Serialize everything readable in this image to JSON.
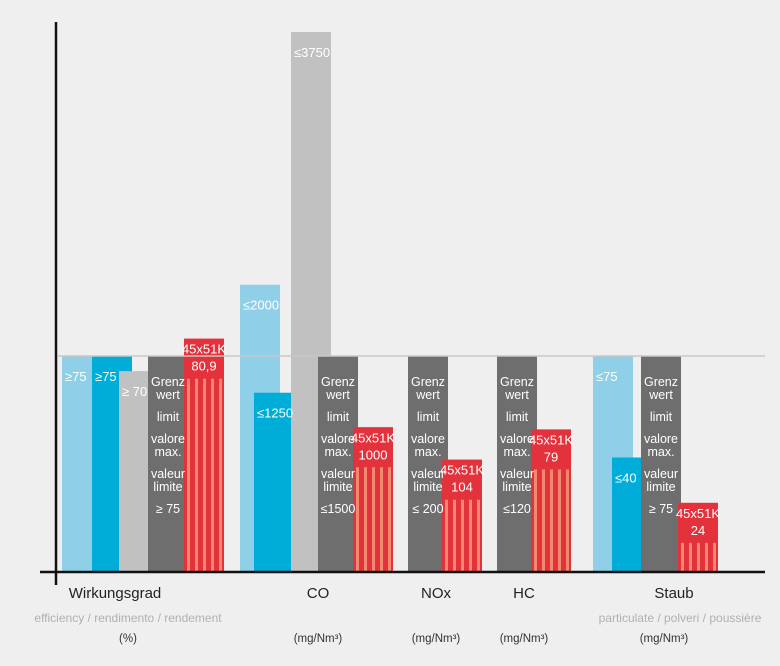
{
  "colors": {
    "background": "#efefef",
    "light_blue": "#8fcfe8",
    "blue": "#00acd8",
    "light_gray": "#c1c1c1",
    "dark_gray": "#6e6e6e",
    "red": "#e3323b",
    "red_stripe": "#f08a6e",
    "reference_line": "#c8c8c8",
    "axis": "#111111"
  },
  "chart_data": {
    "type": "bar",
    "reference_level": "100% of limit",
    "groups": [
      {
        "name": "Wirkungsgrad",
        "subtitle": "efficiency / rendimento / rendement",
        "unit": "(%)",
        "bars": [
          {
            "style": "light_blue",
            "label": "≥75",
            "value": 100
          },
          {
            "style": "blue",
            "label": "≥75",
            "value": 100
          },
          {
            "style": "light_gray",
            "label": "≥ 70",
            "value": 93
          },
          {
            "style": "dark_gray",
            "label_lines": [
              "Grenz",
              "wert",
              "",
              "limit",
              "",
              "valore",
              "max.",
              "",
              "valeur",
              "limite",
              "",
              "≥ 75"
            ],
            "value": 100
          },
          {
            "style": "red",
            "label_lines": [
              "45x51K",
              "80,9"
            ],
            "value": 108
          }
        ]
      },
      {
        "name": "CO",
        "subtitle": "",
        "unit": "(mg/Nm³)",
        "bars": [
          {
            "style": "light_blue",
            "label": "≤2000",
            "value": 133
          },
          {
            "style": "blue",
            "label": "≤1250",
            "value": 83
          },
          {
            "style": "light_gray",
            "label": "≤3750",
            "value": 250
          },
          {
            "style": "dark_gray",
            "label_lines": [
              "Grenz",
              "wert",
              "",
              "limit",
              "",
              "valore",
              "max.",
              "",
              "valeur",
              "limite",
              "",
              "≤1500"
            ],
            "value": 100
          },
          {
            "style": "red",
            "label_lines": [
              "45x51K",
              "1000"
            ],
            "value": 67
          }
        ]
      },
      {
        "name": "NOx",
        "subtitle": "",
        "unit": "(mg/Nm³)",
        "bars": [
          {
            "style": "dark_gray",
            "label_lines": [
              "Grenz",
              "wert",
              "",
              "limit",
              "",
              "valore",
              "max.",
              "",
              "valeur",
              "limite",
              "",
              "≤ 200"
            ],
            "value": 100
          },
          {
            "style": "red",
            "label_lines": [
              "45x51K",
              "104"
            ],
            "value": 52
          }
        ]
      },
      {
        "name": "HC",
        "subtitle": "",
        "unit": "(mg/Nm³)",
        "bars": [
          {
            "style": "dark_gray",
            "label_lines": [
              "Grenz",
              "wert",
              "",
              "limit",
              "",
              "valore",
              "max.",
              "",
              "valeur",
              "limite",
              "",
              "≤120"
            ],
            "value": 100
          },
          {
            "style": "red",
            "label_lines": [
              "45x51K",
              "79"
            ],
            "value": 66
          }
        ]
      },
      {
        "name": "Staub",
        "subtitle": "particulate / polveri / poussière",
        "unit": "(mg/Nm³)",
        "bars": [
          {
            "style": "light_blue",
            "label": "≤75",
            "value": 100
          },
          {
            "style": "blue",
            "label": "≤40",
            "value": 53
          },
          {
            "style": "dark_gray",
            "label_lines": [
              "Grenz",
              "wert",
              "",
              "limit",
              "",
              "valore",
              "max.",
              "",
              "valeur",
              "limite",
              "",
              "≥ 75"
            ],
            "value": 100
          },
          {
            "style": "red",
            "label_lines": [
              "45x51K",
              "24"
            ],
            "value": 32
          }
        ]
      }
    ]
  }
}
